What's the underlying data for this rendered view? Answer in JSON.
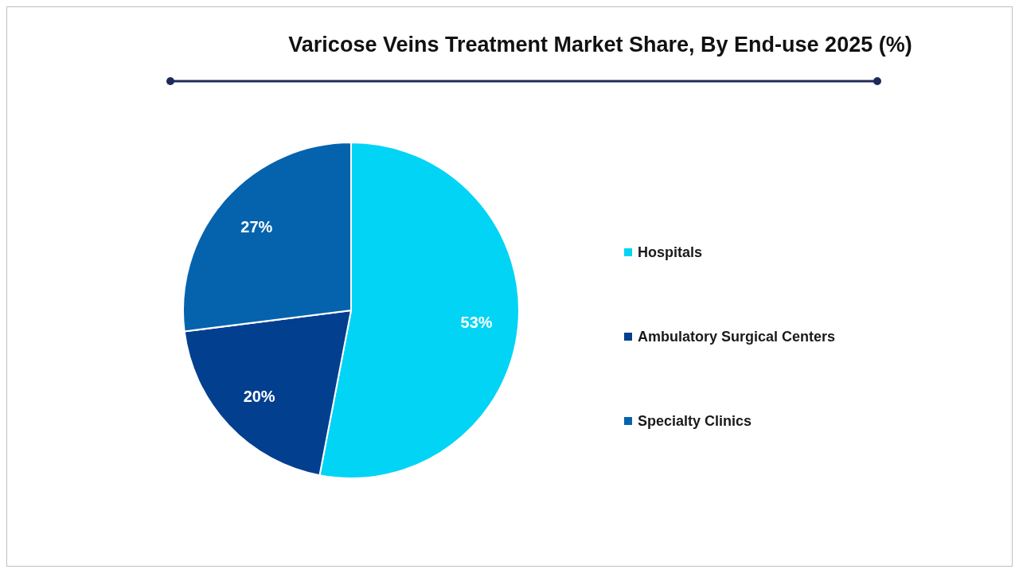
{
  "chart_data": {
    "type": "pie",
    "title": "Varicose Veins Treatment Market Share, By End-use 2025 (%)",
    "categories": [
      "Hospitals",
      "Ambulatory Surgical Centers",
      "Specialty Clinics"
    ],
    "values": [
      53,
      20,
      27
    ],
    "colors": [
      "#02d4f5",
      "#033f8f",
      "#0563ad"
    ],
    "value_labels": [
      "53%",
      "20%",
      "27%"
    ],
    "legend": "right"
  }
}
